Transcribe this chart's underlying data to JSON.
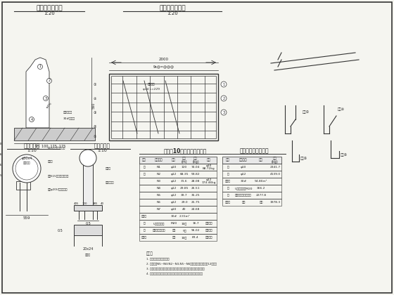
{
  "bg_color": "#f5f5f0",
  "line_color": "#333333",
  "title1": "护栏断面尺寸图",
  "title1_sub": "1:20",
  "title2": "护栏钢筋布置图",
  "title2_sub": "1:20",
  "title3": "护手横断面",
  "title3_sub": "1:10",
  "title4": "护手立面图",
  "title4_sub": "1:10",
  "title5": "单根每10米护栏工程数量表",
  "title6": "全桥护栏工程数量表",
  "notes": [
    "1. 图中尺寸单位均为毫米；",
    "2. 护栏编号N5~N6(N2~N3,N5~N6均需调整，各套不少于12套块；",
    "3. 护栏材料连接，应注意调整和连接应连续牢固，满足强度和刚度要求；",
    "4. 本图说明没有特别说明情况，应参照有关规范和设计图纸进行施工。"
  ]
}
